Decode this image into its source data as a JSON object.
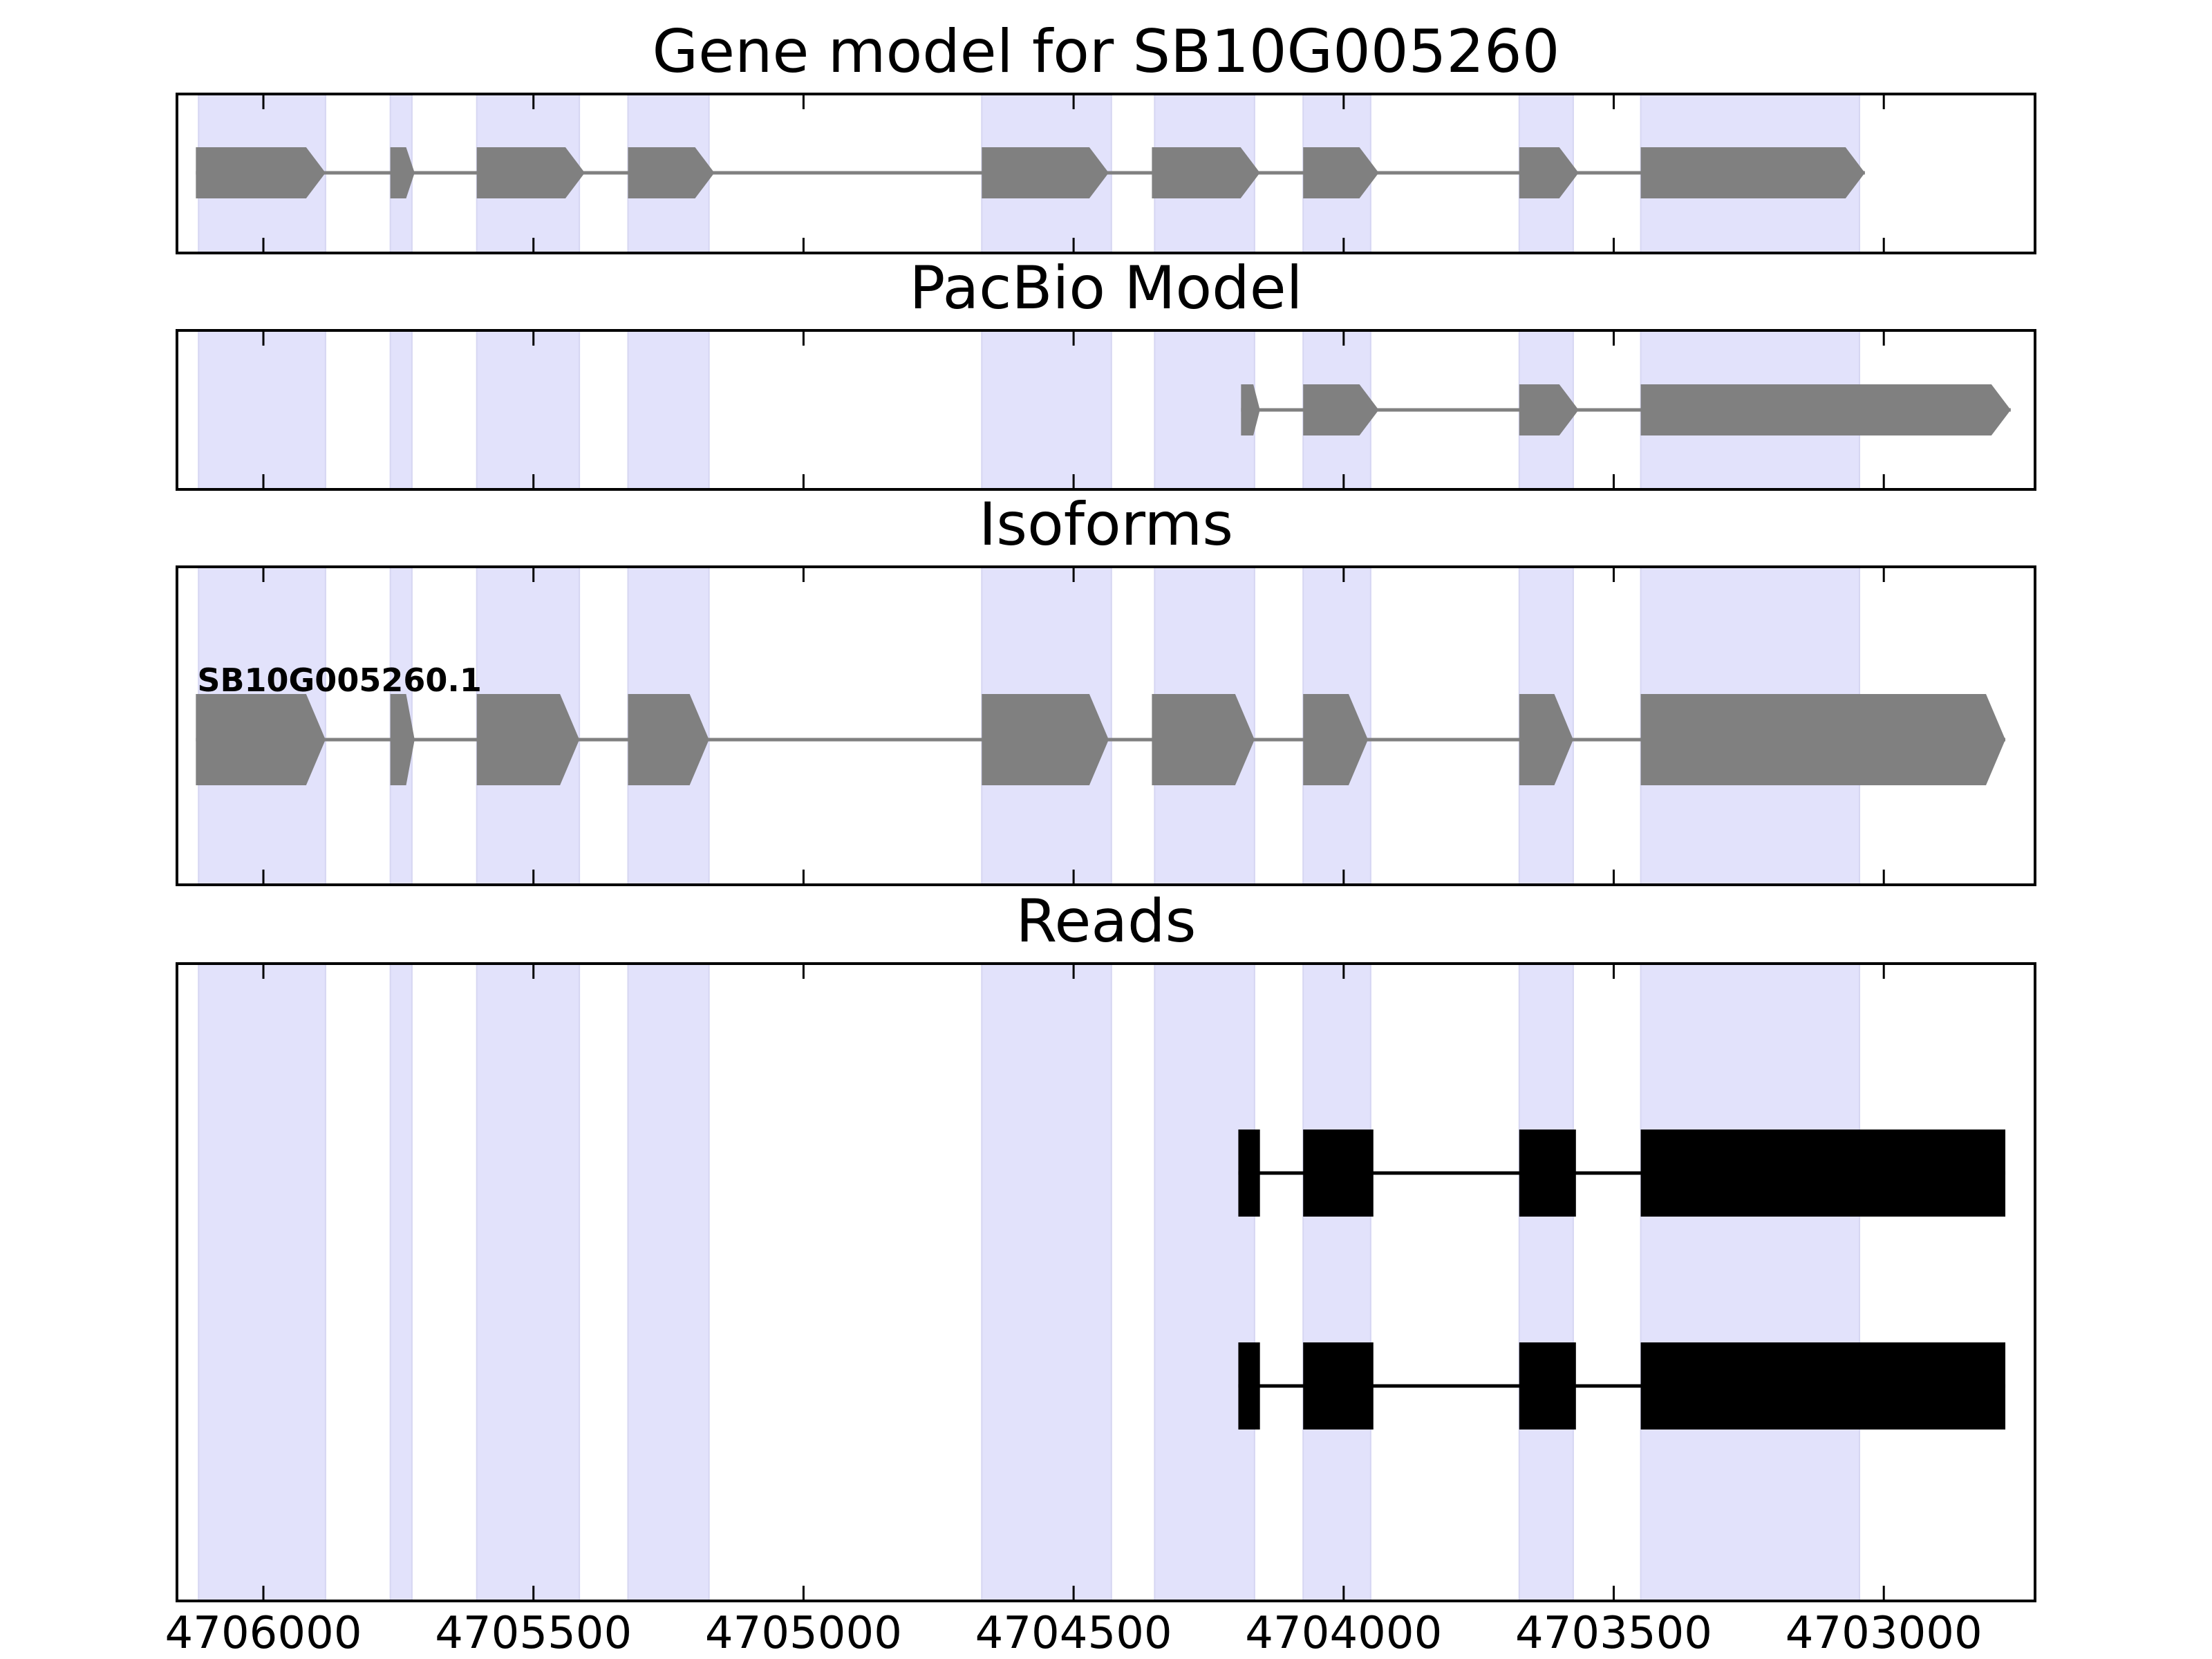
{
  "chart_data": {
    "type": "gene-track",
    "xlim": [
      4706160,
      4702720
    ],
    "x_ticks": [
      {
        "value": 4706000,
        "label": "4706000"
      },
      {
        "value": 4705500,
        "label": "4705500"
      },
      {
        "value": 4705000,
        "label": "4705000"
      },
      {
        "value": 4704500,
        "label": "4704500"
      },
      {
        "value": 4704000,
        "label": "4704000"
      },
      {
        "value": 4703500,
        "label": "4703500"
      },
      {
        "value": 4703000,
        "label": "4703000"
      }
    ],
    "highlight_regions": [
      [
        4706120,
        4705885
      ],
      [
        4705765,
        4705725
      ],
      [
        4705605,
        4705415
      ],
      [
        4705325,
        4705175
      ],
      [
        4704670,
        4704430
      ],
      [
        4704350,
        4704165
      ],
      [
        4704075,
        4703950
      ],
      [
        4703675,
        4703575
      ],
      [
        4703450,
        4703045
      ]
    ],
    "colors": {
      "highlight": "#e2e2fb",
      "gene": "#808080",
      "read": "#000000",
      "frame": "#000000"
    },
    "panels": [
      {
        "id": "gene-model",
        "title": "Gene model for SB10G005260",
        "feature_style": "arrow",
        "features": [
          {
            "label": "",
            "exons": [
              [
                4706125,
                4705885
              ],
              [
                4705765,
                4705720
              ],
              [
                4705605,
                4705405
              ],
              [
                4705325,
                4705165
              ],
              [
                4704670,
                4704435
              ],
              [
                4704355,
                4704155
              ],
              [
                4704075,
                4703935
              ],
              [
                4703675,
                4703565
              ],
              [
                4703450,
                4703035
              ]
            ]
          }
        ]
      },
      {
        "id": "pacbio-model",
        "title": "PacBio Model",
        "feature_style": "arrow",
        "features": [
          {
            "label": "",
            "exons": [
              [
                4704190,
                4704155
              ],
              [
                4704075,
                4703935
              ],
              [
                4703675,
                4703565
              ],
              [
                4703450,
                4702765
              ]
            ]
          }
        ]
      },
      {
        "id": "isoforms",
        "title": "Isoforms",
        "feature_style": "arrow",
        "features": [
          {
            "label": "SB10G005260.1",
            "exons": [
              [
                4706125,
                4705885
              ],
              [
                4705765,
                4705720
              ],
              [
                4705605,
                4705415
              ],
              [
                4705325,
                4705175
              ],
              [
                4704670,
                4704435
              ],
              [
                4704355,
                4704165
              ],
              [
                4704075,
                4703955
              ],
              [
                4703675,
                4703575
              ],
              [
                4703450,
                4702775
              ]
            ]
          }
        ]
      },
      {
        "id": "reads",
        "title": "Reads",
        "feature_style": "box",
        "features": [
          {
            "label": "",
            "exons": [
              [
                4704195,
                4704155
              ],
              [
                4704075,
                4703945
              ],
              [
                4703675,
                4703570
              ],
              [
                4703450,
                4702775
              ]
            ]
          },
          {
            "label": "",
            "exons": [
              [
                4704195,
                4704155
              ],
              [
                4704075,
                4703945
              ],
              [
                4703675,
                4703570
              ],
              [
                4703450,
                4702775
              ]
            ]
          }
        ]
      }
    ]
  }
}
